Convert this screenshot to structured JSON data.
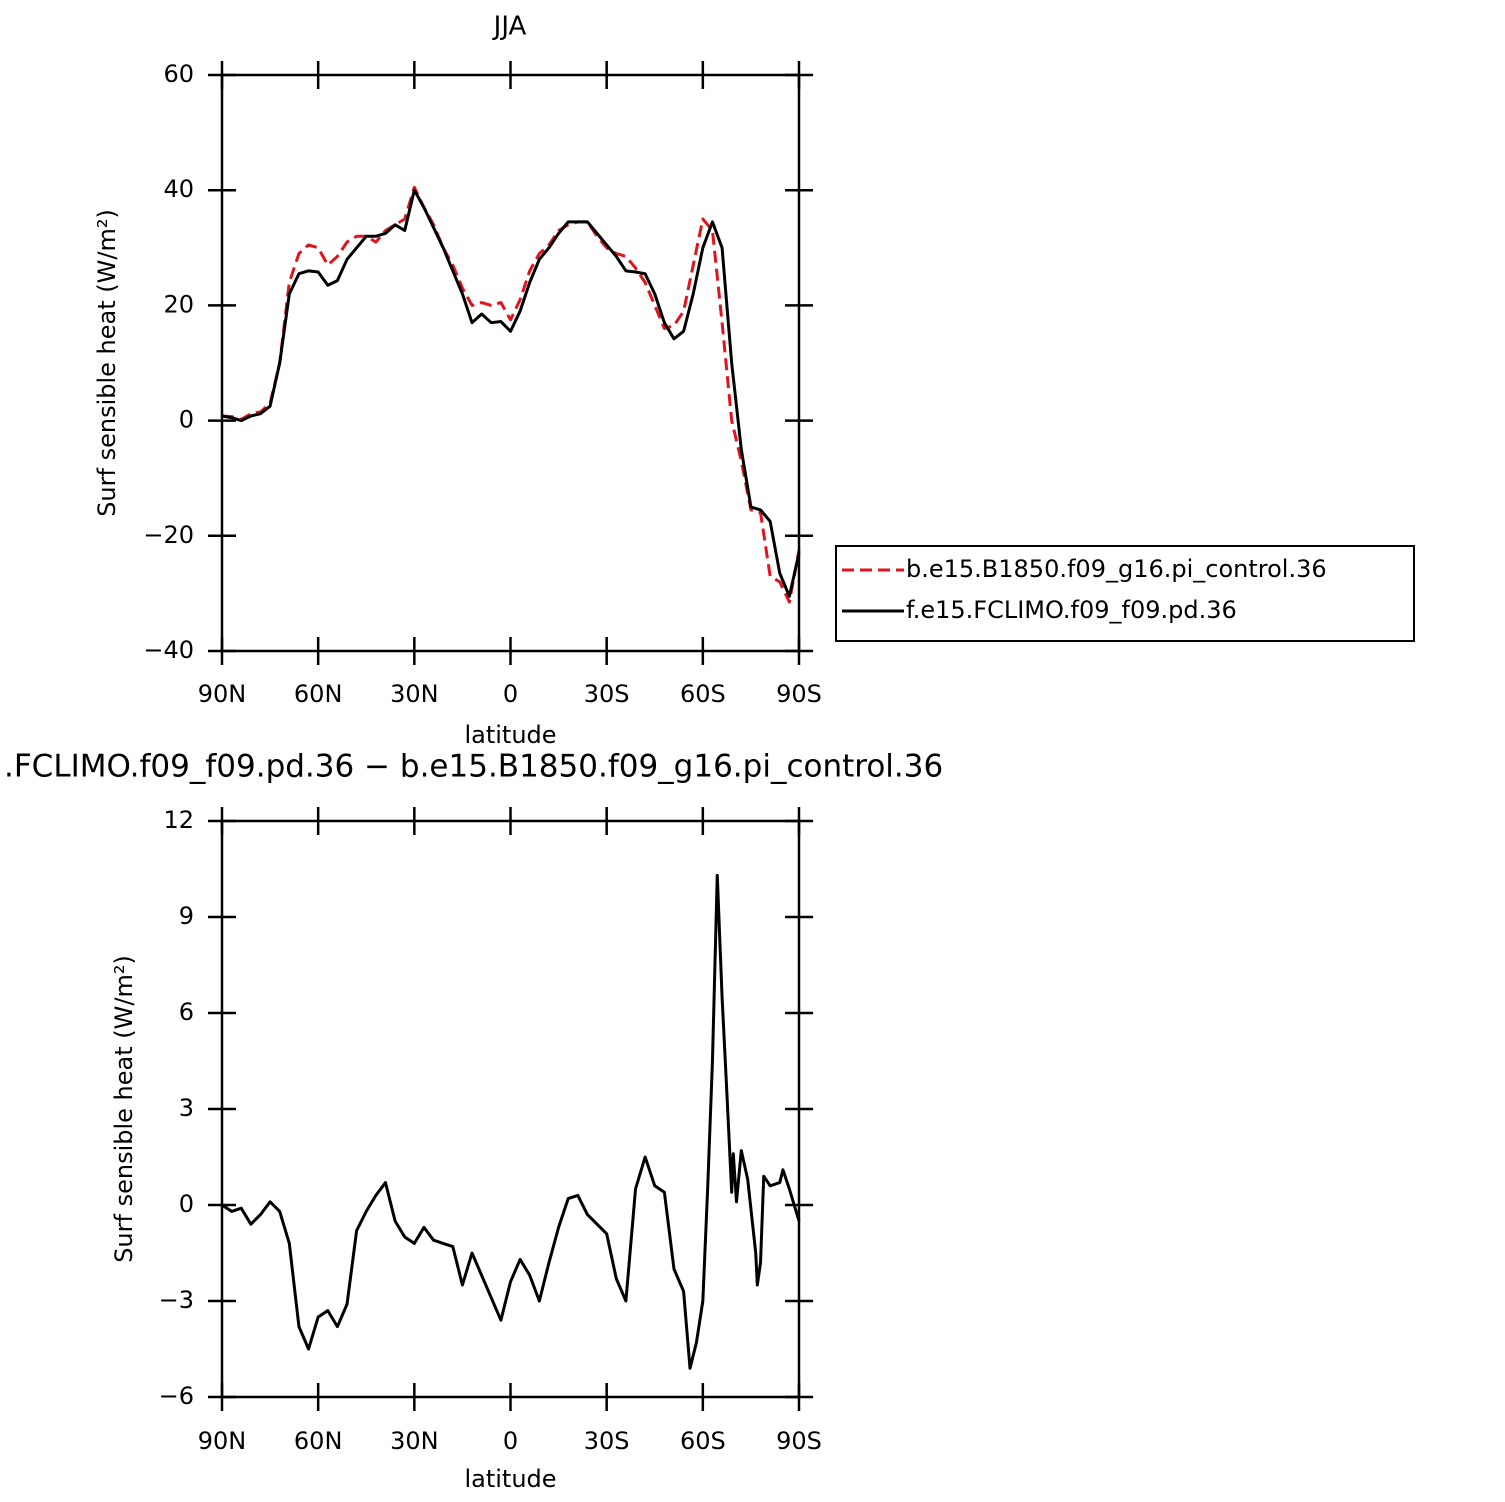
{
  "chart_data": [
    {
      "type": "line",
      "title": "JJA",
      "xlabel": "latitude",
      "ylabel": "Surf sensible heat (W/m²)",
      "x": [
        90,
        87,
        84,
        81,
        78,
        75,
        72,
        69,
        66,
        63,
        60,
        57,
        54,
        51,
        48,
        45,
        42,
        39,
        36,
        33,
        30,
        27,
        24,
        21,
        18,
        15,
        12,
        9,
        6,
        3,
        0,
        -3,
        -6,
        -9,
        -12,
        -15,
        -18,
        -21,
        -24,
        -27,
        -30,
        -33,
        -36,
        -39,
        -42,
        -45,
        -48,
        -51,
        -54,
        -57,
        -60,
        -63,
        -66,
        -69,
        -72,
        -75,
        -78,
        -81,
        -84,
        -87,
        -90
      ],
      "series": [
        {
          "name": "b.e15.B1850.f09_g16.pi_control.36",
          "color": "#e0141e",
          "style": "dashed",
          "values": [
            0.8,
            0.7,
            0.2,
            1.2,
            1.5,
            3,
            10,
            24,
            29,
            30.5,
            30,
            27,
            28.5,
            31,
            32,
            32,
            31,
            33,
            34,
            35,
            40.5,
            37,
            34,
            30,
            27,
            23,
            20,
            20.5,
            20,
            20.5,
            17.5,
            21,
            26,
            29,
            30.5,
            33,
            34,
            34.5,
            34.5,
            32,
            30,
            29,
            28.5,
            26.5,
            24,
            20,
            16,
            16.5,
            19,
            27,
            35,
            33,
            17,
            0,
            -7,
            -15.5,
            -16,
            -27,
            -28,
            -31.5,
            -22.5
          ]
        },
        {
          "name": "f.e15.FCLIMO.f09_f09.pd.36",
          "color": "#000000",
          "style": "solid",
          "values": [
            0.8,
            0.5,
            0,
            0.8,
            1.2,
            2.5,
            10,
            22,
            25.5,
            26,
            25.8,
            23.5,
            24.3,
            28,
            30,
            32,
            32,
            32.5,
            34,
            33,
            40,
            37,
            33.5,
            30,
            26,
            22,
            17,
            18.5,
            17,
            17.2,
            15.5,
            19,
            24,
            28,
            30,
            32.5,
            34.5,
            34.5,
            34.5,
            32.5,
            30.5,
            28.5,
            26,
            25.8,
            25.5,
            22,
            17,
            14.2,
            15.5,
            22,
            30,
            34.5,
            30,
            10,
            -5,
            -15,
            -15.5,
            -17.5,
            -26.5,
            -30.5,
            -23
          ]
        }
      ],
      "xlim": [
        90,
        -90
      ],
      "xticks": [
        {
          "value": 90,
          "label": "90N"
        },
        {
          "value": 60,
          "label": "60N"
        },
        {
          "value": 30,
          "label": "30N"
        },
        0,
        {
          "value": -30,
          "label": "30S"
        },
        {
          "value": -60,
          "label": "60S"
        },
        {
          "value": -90,
          "label": "90S"
        }
      ],
      "ylim": [
        -40,
        60
      ],
      "yticks": [
        {
          "value": -40,
          "label": "−40"
        },
        {
          "value": -20,
          "label": "−20"
        },
        0,
        20,
        40,
        60
      ],
      "legend": "outside-right"
    },
    {
      "type": "line",
      "title": ".FCLIMO.f09_f09.pd.36 − b.e15.B1850.f09_g16.pi_control.36",
      "xlabel": "latitude",
      "ylabel": "Surf sensible heat (W/m²)",
      "x": [
        90,
        87,
        84,
        81,
        78,
        75,
        72,
        69,
        66,
        63,
        60,
        57,
        54,
        51,
        48,
        45,
        42,
        39,
        36,
        33,
        30,
        27,
        24,
        21,
        18,
        15,
        12,
        9,
        6,
        3,
        0,
        -3,
        -6,
        -9,
        -12,
        -15,
        -18,
        -21,
        -24,
        -27,
        -30,
        -33,
        -36,
        -39,
        -42,
        -45,
        -48,
        -51,
        -54,
        -56,
        -58,
        -60,
        -61.5,
        -63,
        -64.5,
        -66,
        -67.5,
        -69,
        -69.5,
        -70.5,
        -72,
        -74,
        -76.5,
        -77,
        -78,
        -79,
        -81,
        -84,
        -85,
        -87,
        -90
      ],
      "values": [
        0,
        -0.2,
        -0.1,
        -0.6,
        -0.3,
        0.1,
        -0.2,
        -1.2,
        -3.8,
        -4.5,
        -3.5,
        -3.3,
        -3.8,
        -3.1,
        -0.8,
        -0.2,
        0.3,
        0.7,
        -0.5,
        -1.0,
        -1.2,
        -0.7,
        -1.1,
        -1.2,
        -1.3,
        -2.5,
        -1.5,
        -2.2,
        -2.9,
        -3.6,
        -2.4,
        -1.7,
        -2.2,
        -3.0,
        -1.8,
        -0.7,
        0.2,
        0.3,
        -0.3,
        -0.6,
        -0.9,
        -2.3,
        -3.0,
        0.5,
        1.5,
        0.6,
        0.4,
        -2.0,
        -2.7,
        -5.1,
        -4.3,
        -3.0,
        0.5,
        4.5,
        10.3,
        6.5,
        3.5,
        0.4,
        1.6,
        0.1,
        1.7,
        0.8,
        -1.5,
        -2.5,
        -1.8,
        0.9,
        0.6,
        0.7,
        1.1,
        0.5,
        -0.5
      ],
      "color": "#000000",
      "xlim": [
        90,
        -90
      ],
      "xticks": [
        {
          "value": 90,
          "label": "90N"
        },
        {
          "value": 60,
          "label": "60N"
        },
        {
          "value": 30,
          "label": "30N"
        },
        0,
        {
          "value": -30,
          "label": "30S"
        },
        {
          "value": -60,
          "label": "60S"
        },
        {
          "value": -90,
          "label": "90S"
        }
      ],
      "ylim": [
        -6,
        12
      ],
      "yticks": [
        {
          "value": -6,
          "label": "−6"
        },
        {
          "value": -3,
          "label": "−3"
        },
        0,
        3,
        6,
        9,
        12
      ]
    }
  ]
}
